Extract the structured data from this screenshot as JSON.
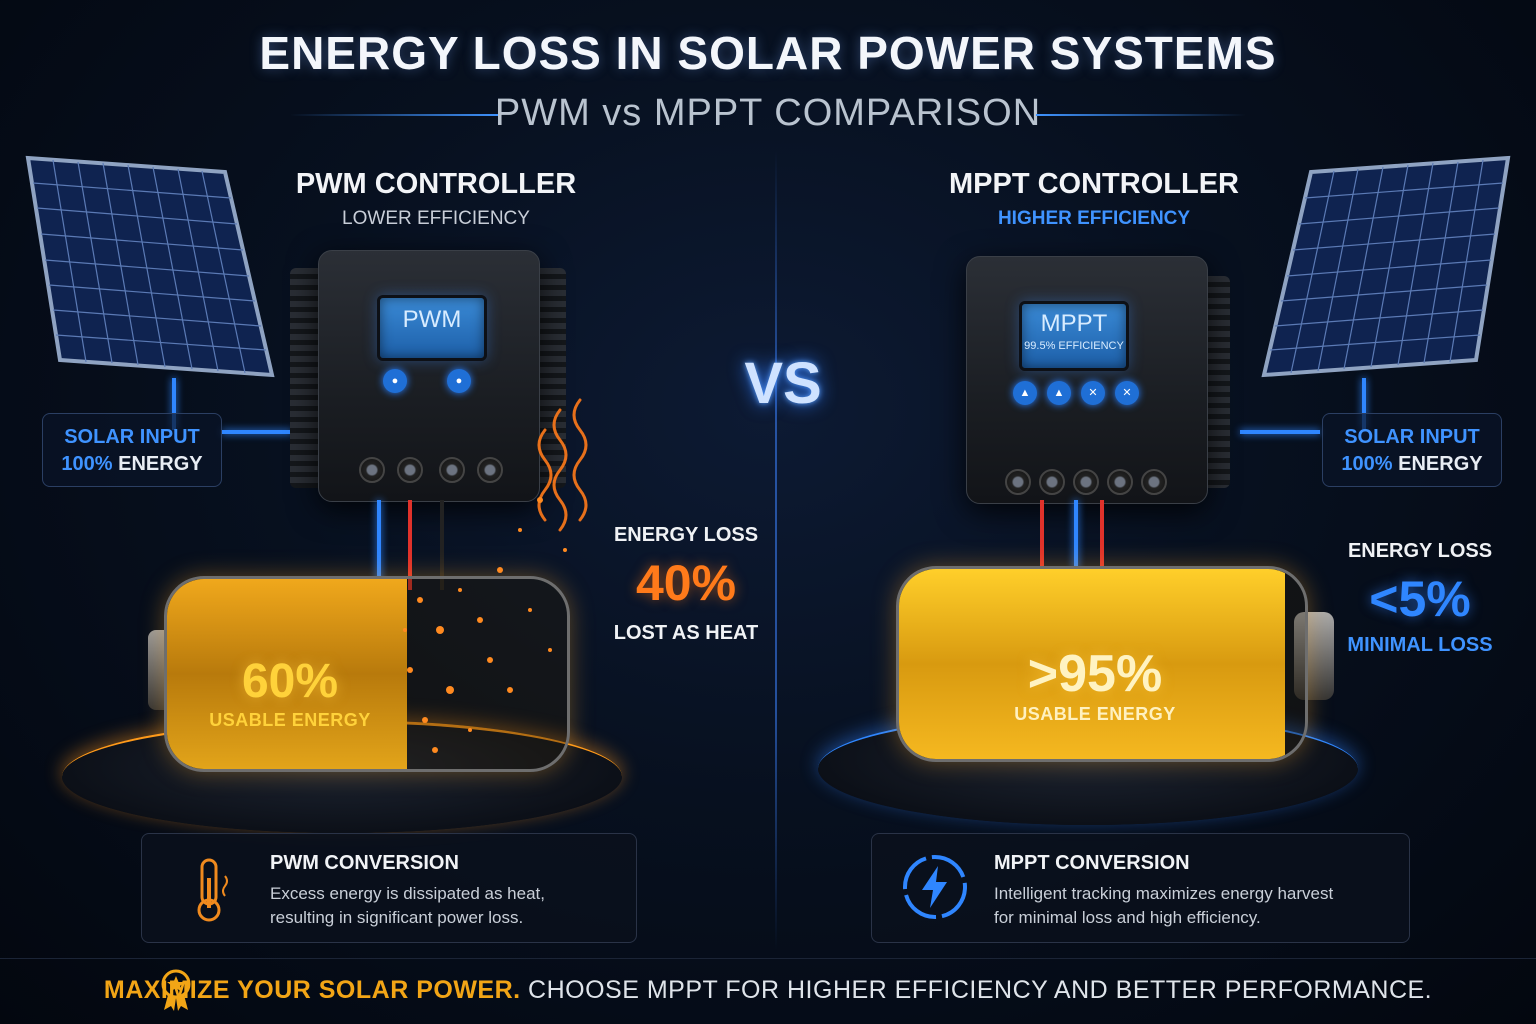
{
  "title": "ENERGY LOSS IN SOLAR POWER SYSTEMS",
  "subtitle": "PWM vs MPPT COMPARISON",
  "vs_label": "VS",
  "colors": {
    "accent_blue": "#3f93ff",
    "accent_orange": "#ff7a1a",
    "battery_yellow": "#ffd23a",
    "footer_highlight": "#f2a516"
  },
  "pwm": {
    "controller_title": "PWM CONTROLLER",
    "controller_sub": "LOWER EFFICIENCY",
    "screen_label": "PWM",
    "solar_input_line1": "SOLAR INPUT",
    "solar_input_pct": "100%",
    "solar_input_word": "ENERGY",
    "battery_pct": "60%",
    "battery_fill": 0.6,
    "battery_label": "USABLE ENERGY",
    "loss_label": "ENERGY LOSS",
    "loss_value": "40%",
    "loss_note": "LOST AS HEAT",
    "card_title": "PWM CONVERSION",
    "card_desc_1": "Excess energy is dissipated as heat,",
    "card_desc_2": "resulting in significant power loss.",
    "card_icon": "thermometer-icon"
  },
  "mppt": {
    "controller_title": "MPPT CONTROLLER",
    "controller_sub": "HIGHER EFFICIENCY",
    "screen_label": "MPPT",
    "screen_efficiency": "99.5% EFFICIENCY",
    "solar_input_line1": "SOLAR INPUT",
    "solar_input_pct": "100%",
    "solar_input_word": "ENERGY",
    "battery_pct": ">95%",
    "battery_fill": 0.95,
    "battery_label": "USABLE ENERGY",
    "loss_label": "ENERGY LOSS",
    "loss_value": "<5%",
    "loss_note": "MINIMAL LOSS",
    "card_title": "MPPT CONVERSION",
    "card_desc_1": "Intelligent tracking maximizes energy harvest",
    "card_desc_2": "for minimal loss and high efficiency.",
    "card_icon": "lightning-bolt-icon"
  },
  "footer": {
    "highlight": "MAXIMIZE YOUR SOLAR POWER.",
    "rest": " CHOOSE MPPT FOR HIGHER EFFICIENCY AND BETTER PERFORMANCE.",
    "icon": "award-medal-icon"
  }
}
